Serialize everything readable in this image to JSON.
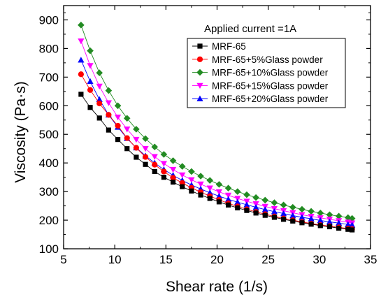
{
  "chart_data": {
    "type": "line",
    "title": "",
    "annotation": "Applied current =1A",
    "xlabel": "Shear rate (1/s)",
    "ylabel": "Viscosity (Pa·s)",
    "xlim": [
      5,
      35
    ],
    "ylim": [
      100,
      950
    ],
    "xticks": [
      5,
      10,
      15,
      20,
      25,
      30,
      35
    ],
    "yticks": [
      100,
      200,
      300,
      400,
      500,
      600,
      700,
      800,
      900
    ],
    "grid": false,
    "legend_position": "top-right",
    "x": [
      6.7,
      7.6,
      8.5,
      9.4,
      10.3,
      11.2,
      12.1,
      13.0,
      13.9,
      14.8,
      15.7,
      16.6,
      17.5,
      18.4,
      19.3,
      20.2,
      21.1,
      22.0,
      22.9,
      23.8,
      24.7,
      25.6,
      26.5,
      27.4,
      28.3,
      29.2,
      30.1,
      31.0,
      31.9,
      32.8,
      33.2
    ],
    "series": [
      {
        "name": "MRF-65",
        "marker": "square",
        "color": "#000000",
        "values": [
          640,
          594,
          557,
          515,
          482,
          450,
          420,
          395,
          370,
          350,
          333,
          317,
          302,
          288,
          276,
          264,
          253,
          243,
          234,
          225,
          217,
          210,
          203,
          197,
          191,
          186,
          181,
          177,
          172,
          168,
          166
        ]
      },
      {
        "name": "MRF-65+5%Glass powder",
        "marker": "circle",
        "color": "#ff0000",
        "values": [
          710,
          655,
          608,
          568,
          530,
          487,
          453,
          421,
          394,
          370,
          348,
          330,
          313,
          298,
          284,
          271,
          259,
          248,
          238,
          229,
          221,
          213,
          206,
          200,
          194,
          188,
          183,
          179,
          175,
          171,
          169
        ]
      },
      {
        "name": "MRF-65+10%Glass powder",
        "marker": "diamond",
        "color": "#228b22",
        "values": [
          882,
          792,
          715,
          653,
          600,
          556,
          518,
          485,
          456,
          430,
          408,
          388,
          370,
          354,
          339,
          325,
          312,
          300,
          289,
          279,
          270,
          261,
          253,
          245,
          238,
          231,
          225,
          219,
          214,
          209,
          206
        ]
      },
      {
        "name": "MRF-65+15%Glass powder",
        "marker": "triangle-down",
        "color": "#ff00ff",
        "values": [
          826,
          740,
          668,
          610,
          560,
          518,
          482,
          450,
          422,
          398,
          377,
          358,
          341,
          326,
          312,
          299,
          287,
          276,
          266,
          257,
          248,
          240,
          233,
          226,
          219,
          213,
          208,
          203,
          198,
          193,
          190
        ]
      },
      {
        "name": "MRF-65+20%Glass powder",
        "marker": "triangle-up",
        "color": "#0000ff",
        "values": [
          760,
          685,
          622,
          568,
          525,
          486,
          453,
          425,
          400,
          377,
          357,
          339,
          323,
          309,
          296,
          284,
          273,
          263,
          254,
          245,
          237,
          230,
          223,
          216,
          210,
          205,
          199,
          194,
          190,
          185,
          183
        ]
      }
    ]
  }
}
